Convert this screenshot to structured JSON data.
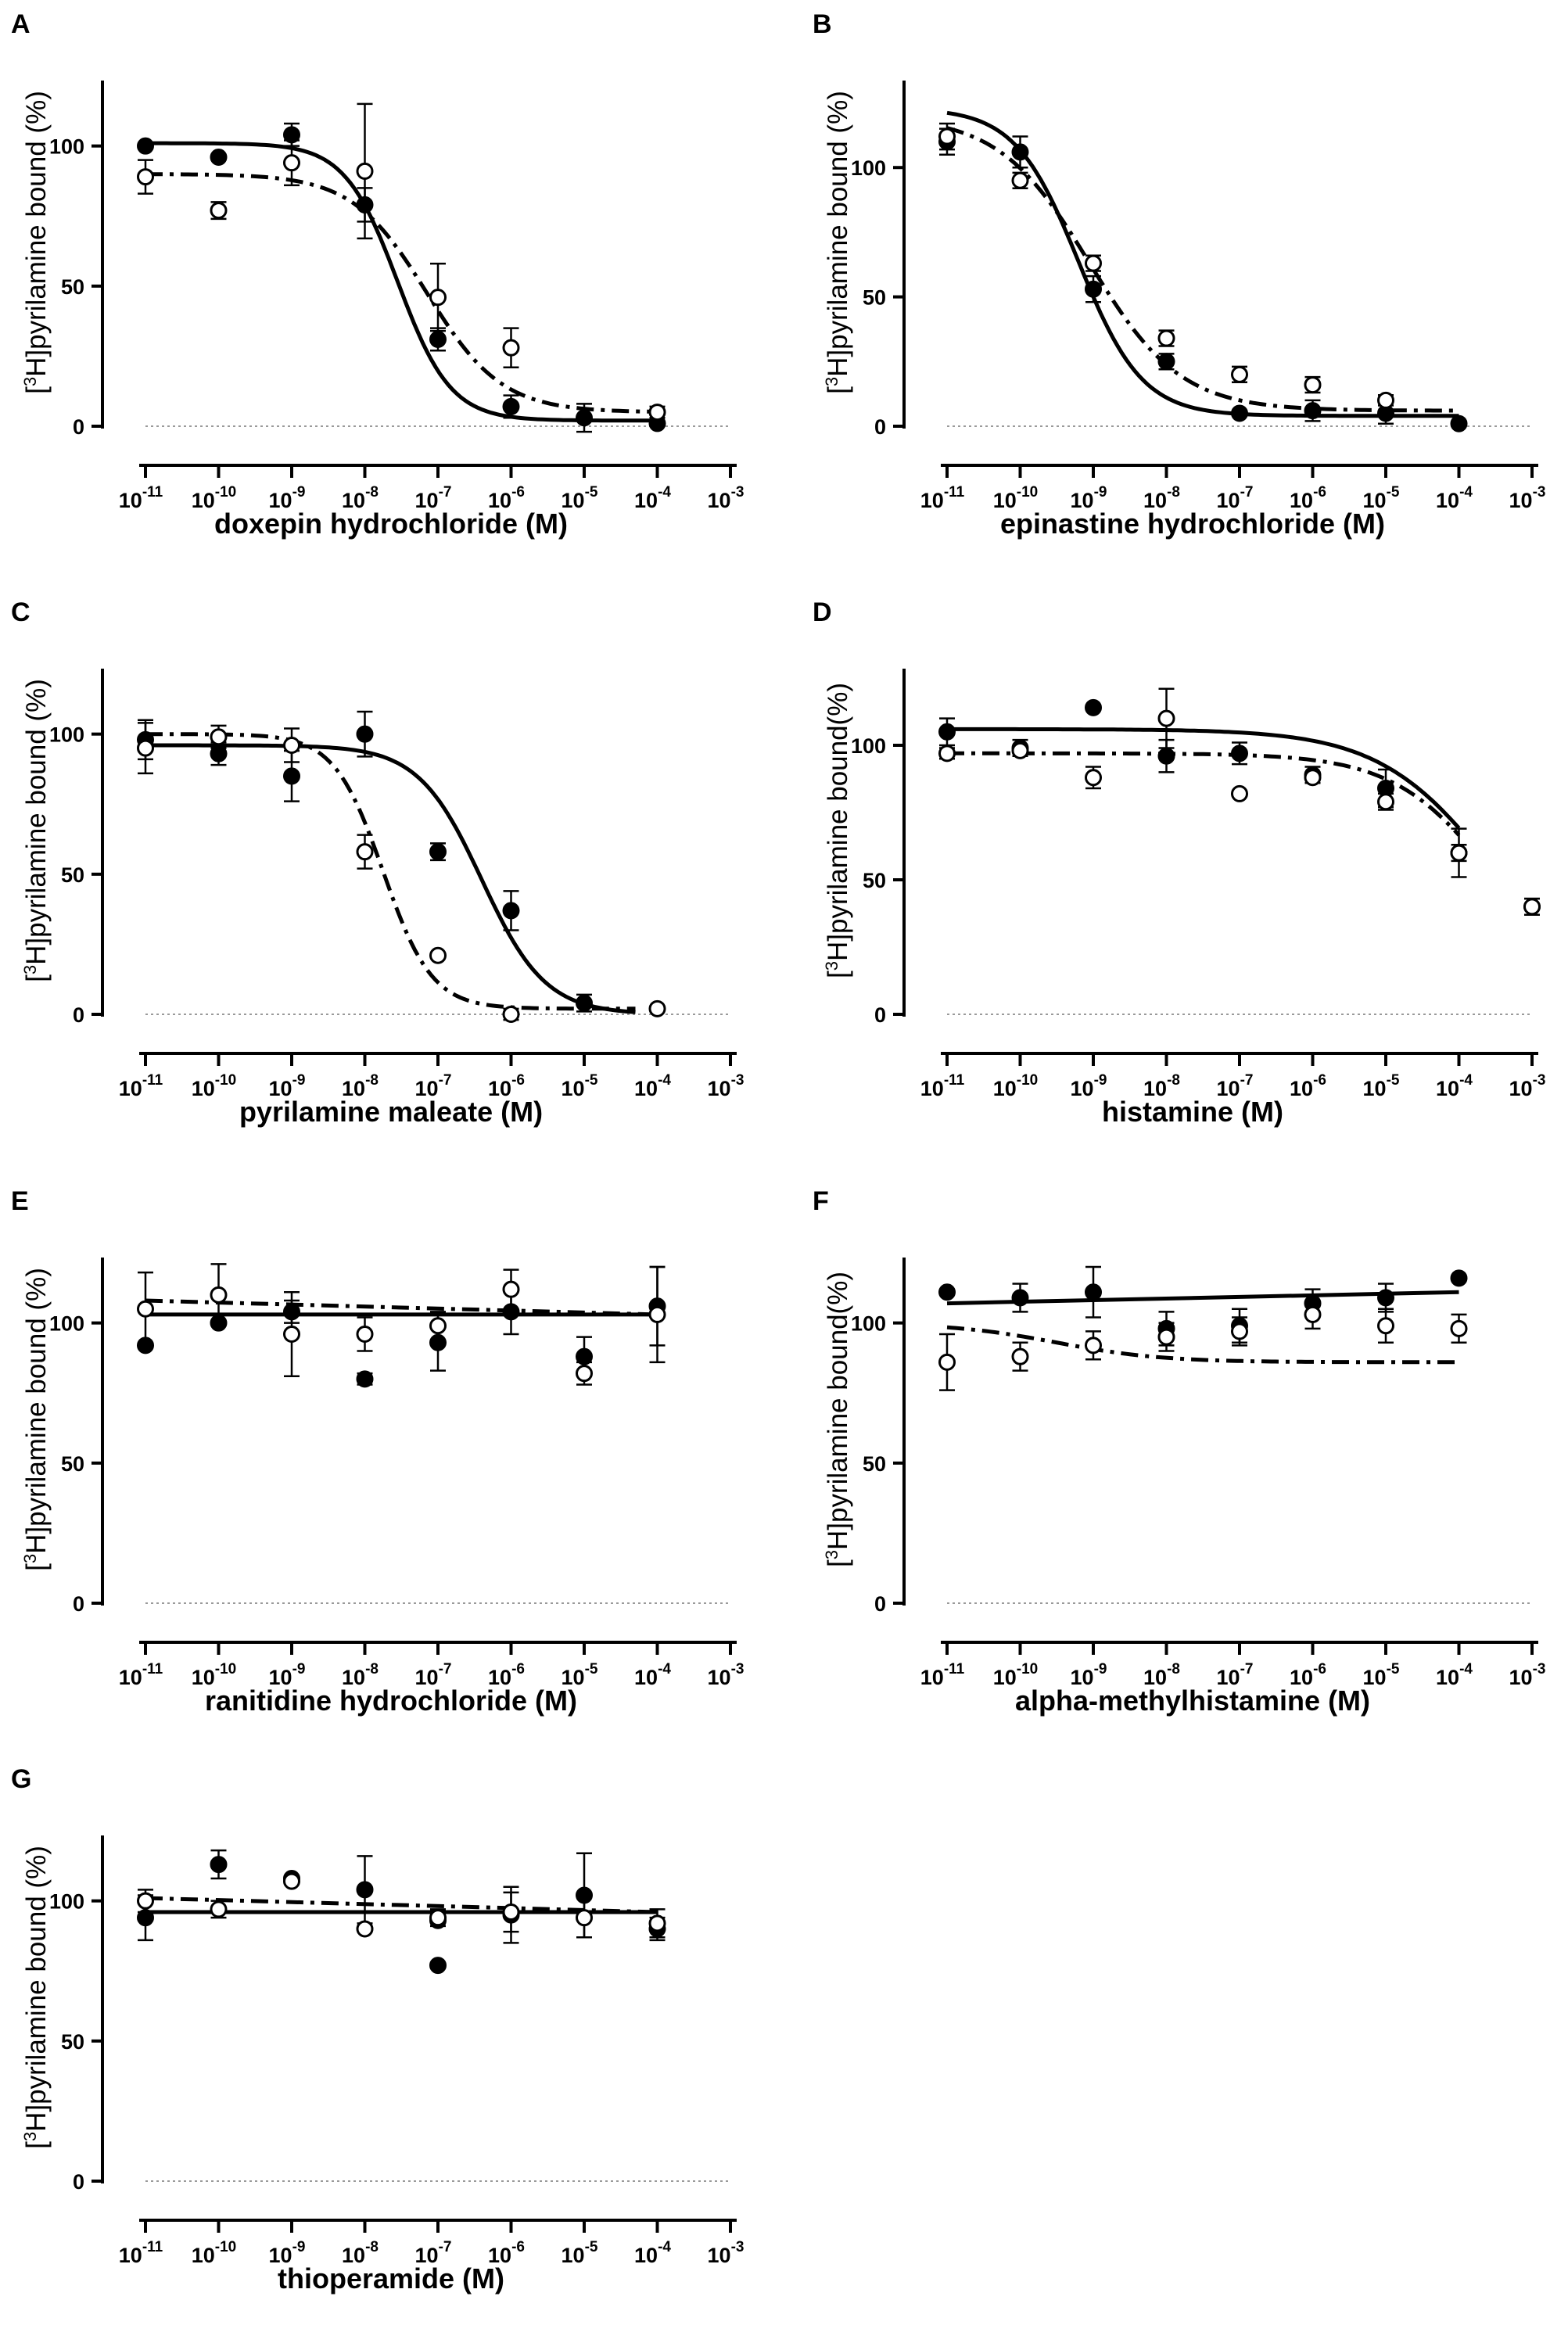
{
  "figure": {
    "description_units": "x in log10 molar concentration; y in percent bound",
    "marker_legend": {
      "filled": "series 1 (solid fit line)",
      "open": "series 2 (dash-dot fit line)"
    },
    "colors": {
      "ink": "#000000",
      "baseline": "#9a9a9a",
      "open_fill": "#ffffff"
    }
  },
  "chart_data": [
    {
      "panel": "A",
      "type": "scatter",
      "xlabel": "doxepin hydrochloride (M)",
      "ylabel_parts": [
        "[",
        "3",
        "H]pyrilamine bound (%)"
      ],
      "xlim": [
        -11,
        -3
      ],
      "ylim": [
        0,
        120
      ],
      "x_ticks": [
        -11,
        -10,
        -9,
        -8,
        -7,
        -6,
        -5,
        -4,
        -3
      ],
      "x_tick_labels": [
        "10",
        "10",
        "10",
        "10",
        "10",
        "10",
        "10",
        "10",
        "10"
      ],
      "x_tick_exps": [
        "-11",
        "-10",
        "-9",
        "-8",
        "-7",
        "-6",
        "-5",
        "-4",
        "-3"
      ],
      "y_ticks": [
        0,
        50,
        100
      ],
      "y_tick_labels": [
        "0",
        "50",
        "100"
      ],
      "series": [
        {
          "name": "filled",
          "marker": "filled",
          "x": [
            -11,
            -10,
            -9,
            -8,
            -7,
            -6,
            -5,
            -4
          ],
          "y": [
            100,
            96,
            104,
            79,
            31,
            7,
            3,
            1
          ],
          "err": [
            1,
            1,
            4,
            6,
            4,
            4,
            5,
            1
          ],
          "fit": {
            "model": "sigmoid",
            "line": "solid",
            "top": 101,
            "bottom": 2,
            "logEC50": -7.55,
            "hill": 1.2
          }
        },
        {
          "name": "open",
          "marker": "open",
          "x": [
            -11,
            -10,
            -9,
            -8,
            -7,
            -6,
            -4
          ],
          "y": [
            89,
            77,
            94,
            91,
            46,
            28,
            5
          ],
          "err": [
            6,
            3,
            8,
            24,
            12,
            7,
            2
          ],
          "fit": {
            "model": "sigmoid",
            "line": "dashdot",
            "top": 90,
            "bottom": 5,
            "logEC50": -7.15,
            "hill": 0.85
          }
        }
      ]
    },
    {
      "panel": "B",
      "type": "scatter",
      "xlabel": "epinastine hydrochloride (M)",
      "ylabel_parts": [
        "[",
        "3",
        "H]pyrilamine bound (%)"
      ],
      "xlim": [
        -11,
        -3
      ],
      "ylim": [
        0,
        130
      ],
      "x_ticks": [
        -11,
        -10,
        -9,
        -8,
        -7,
        -6,
        -5,
        -4,
        -3
      ],
      "x_tick_labels": [
        "10",
        "10",
        "10",
        "10",
        "10",
        "10",
        "10",
        "10",
        "10"
      ],
      "x_tick_exps": [
        "-11",
        "-10",
        "-9",
        "-8",
        "-7",
        "-6",
        "-5",
        "-4",
        "-3"
      ],
      "y_ticks": [
        0,
        50,
        100
      ],
      "y_tick_labels": [
        "0",
        "50",
        "100"
      ],
      "series": [
        {
          "name": "filled",
          "marker": "filled",
          "x": [
            -11,
            -10,
            -9,
            -8,
            -7,
            -6,
            -5,
            -4
          ],
          "y": [
            110,
            106,
            53,
            25,
            5,
            6,
            5,
            1
          ],
          "err": [
            5,
            6,
            5,
            3,
            1,
            4,
            4,
            1
          ],
          "fit": {
            "model": "sigmoid",
            "line": "solid",
            "top": 123,
            "bottom": 4,
            "logEC50": -9.2,
            "hill": 1.0
          }
        },
        {
          "name": "open",
          "marker": "open",
          "x": [
            -11,
            -10,
            -9,
            -8,
            -7,
            -6,
            -5
          ],
          "y": [
            112,
            95,
            63,
            34,
            20,
            16,
            10
          ],
          "err": [
            5,
            3,
            3,
            3,
            3,
            3,
            2
          ],
          "fit": {
            "model": "sigmoid",
            "line": "dashdot",
            "top": 120,
            "bottom": 6,
            "logEC50": -9.05,
            "hill": 0.7
          }
        }
      ]
    },
    {
      "panel": "C",
      "type": "scatter",
      "xlabel": "pyrilamine maleate (M)",
      "ylabel_parts": [
        "[",
        "3",
        "H]pyrilamine bound (%)"
      ],
      "xlim": [
        -11,
        -3
      ],
      "ylim": [
        0,
        120
      ],
      "x_ticks": [
        -11,
        -10,
        -9,
        -8,
        -7,
        -6,
        -5,
        -4,
        -3
      ],
      "x_tick_labels": [
        "10",
        "10",
        "10",
        "10",
        "10",
        "10",
        "10",
        "10",
        "10"
      ],
      "x_tick_exps": [
        "-11",
        "-10",
        "-9",
        "-8",
        "-7",
        "-6",
        "-5",
        "-4",
        "-3"
      ],
      "y_ticks": [
        0,
        50,
        100
      ],
      "y_tick_labels": [
        "0",
        "50",
        "100"
      ],
      "series": [
        {
          "name": "filled",
          "marker": "filled",
          "x": [
            -11,
            -10,
            -9,
            -8,
            -7,
            -6,
            -5
          ],
          "y": [
            98,
            93,
            85,
            100,
            58,
            37,
            4
          ],
          "err": [
            7,
            4,
            9,
            8,
            3,
            7,
            3
          ],
          "fit": {
            "model": "sigmoid",
            "line": "solid",
            "top": 96,
            "bottom": 0,
            "logEC50": -6.4,
            "hill": 1.0,
            "x_end": -4.3
          }
        },
        {
          "name": "open",
          "marker": "open",
          "x": [
            -11,
            -10,
            -9,
            -8,
            -7,
            -6,
            -4
          ],
          "y": [
            95,
            99,
            96,
            58,
            21,
            0,
            2
          ],
          "err": [
            9,
            4,
            6,
            6,
            1,
            2,
            1
          ],
          "fit": {
            "model": "sigmoid",
            "line": "dashdot",
            "top": 100,
            "bottom": 2,
            "logEC50": -7.75,
            "hill": 1.3,
            "x_end": -4.3
          }
        }
      ]
    },
    {
      "panel": "D",
      "type": "scatter",
      "xlabel": "histamine (M)",
      "ylabel_parts": [
        "[",
        "3",
        "H]pyrilamine bound(%)"
      ],
      "xlim": [
        -11,
        -3
      ],
      "ylim": [
        0,
        125
      ],
      "x_ticks": [
        -11,
        -10,
        -9,
        -8,
        -7,
        -6,
        -5,
        -4,
        -3
      ],
      "x_tick_labels": [
        "10",
        "10",
        "10",
        "10",
        "10",
        "10",
        "10",
        "10",
        "10"
      ],
      "x_tick_exps": [
        "-11",
        "-10",
        "-9",
        "-8",
        "-7",
        "-6",
        "-5",
        "-4",
        "-3"
      ],
      "y_ticks": [
        0,
        50,
        100
      ],
      "y_tick_labels": [
        "0",
        "50",
        "100"
      ],
      "series": [
        {
          "name": "filled",
          "marker": "filled",
          "x": [
            -11,
            -10,
            -9,
            -8,
            -7,
            -6,
            -5,
            -4,
            -3
          ],
          "y": [
            105,
            99,
            114,
            96,
            97,
            89,
            84,
            60,
            40
          ],
          "err": [
            5,
            3,
            1,
            6,
            4,
            3,
            7,
            9,
            3
          ],
          "fit": {
            "model": "sigmoid",
            "line": "solid",
            "top": 106,
            "bottom": 0,
            "logEC50": -3.5,
            "hill": 0.55
          }
        },
        {
          "name": "open",
          "marker": "open",
          "x": [
            -11,
            -10,
            -9,
            -8,
            -7,
            -6,
            -5,
            -4,
            -3
          ],
          "y": [
            97,
            98,
            88,
            110,
            82,
            88,
            79,
            60,
            40
          ],
          "err": [
            2,
            2,
            4,
            11,
            1,
            2,
            3,
            3,
            3
          ],
          "fit": {
            "model": "sigmoid",
            "line": "dashdot",
            "top": 97,
            "bottom": 0,
            "logEC50": -3.45,
            "hill": 0.62
          }
        }
      ]
    },
    {
      "panel": "E",
      "type": "scatter",
      "xlabel": "ranitidine hydrochloride (M)",
      "ylabel_parts": [
        "[",
        "3",
        "H]pyrilamine bound (%)"
      ],
      "xlim": [
        -11,
        -3
      ],
      "ylim": [
        0,
        120
      ],
      "x_ticks": [
        -11,
        -10,
        -9,
        -8,
        -7,
        -6,
        -5,
        -4,
        -3
      ],
      "x_tick_labels": [
        "10",
        "10",
        "10",
        "10",
        "10",
        "10",
        "10",
        "10",
        "10"
      ],
      "x_tick_exps": [
        "-11",
        "-10",
        "-9",
        "-8",
        "-7",
        "-6",
        "-5",
        "-4",
        "-3"
      ],
      "y_ticks": [
        0,
        50,
        100
      ],
      "y_tick_labels": [
        "0",
        "50",
        "100"
      ],
      "series": [
        {
          "name": "filled",
          "marker": "filled",
          "x": [
            -11,
            -10,
            -9,
            -8,
            -7,
            -6,
            -5,
            -4
          ],
          "y": [
            92,
            100,
            104,
            80,
            93,
            104,
            88,
            106
          ],
          "err": [
            1,
            1,
            4,
            2,
            10,
            8,
            7,
            14
          ],
          "fit": {
            "model": "linear",
            "line": "solid",
            "y_start": 103,
            "y_end": 103,
            "x_start": -11,
            "x_end": -4
          }
        },
        {
          "name": "open",
          "marker": "open",
          "x": [
            -11,
            -10,
            -9,
            -8,
            -7,
            -6,
            -5,
            -4
          ],
          "y": [
            105,
            110,
            96,
            96,
            99,
            112,
            82,
            103
          ],
          "err": [
            13,
            11,
            15,
            6,
            5,
            7,
            4,
            17
          ],
          "fit": {
            "model": "linear",
            "line": "dashdot",
            "y_start": 108,
            "y_end": 103,
            "x_start": -11,
            "x_end": -4
          }
        }
      ]
    },
    {
      "panel": "F",
      "type": "scatter",
      "xlabel": "alpha-methylhistamine (M)",
      "ylabel_parts": [
        "[",
        "3",
        "H]pyrilamine bound(%)"
      ],
      "xlim": [
        -11,
        -3
      ],
      "ylim": [
        0,
        120
      ],
      "x_ticks": [
        -11,
        -10,
        -9,
        -8,
        -7,
        -6,
        -5,
        -4,
        -3
      ],
      "x_tick_labels": [
        "10",
        "10",
        "10",
        "10",
        "10",
        "10",
        "10",
        "10",
        "10"
      ],
      "x_tick_exps": [
        "-11",
        "-10",
        "-9",
        "-8",
        "-7",
        "-6",
        "-5",
        "-4",
        "-3"
      ],
      "y_ticks": [
        0,
        50,
        100
      ],
      "y_tick_labels": [
        "0",
        "50",
        "100"
      ],
      "series": [
        {
          "name": "filled",
          "marker": "filled",
          "x": [
            -11,
            -10,
            -9,
            -8,
            -7,
            -6,
            -5,
            -4
          ],
          "y": [
            111,
            109,
            111,
            98,
            99,
            107,
            109,
            116
          ],
          "err": [
            1,
            5,
            9,
            6,
            6,
            5,
            5,
            1
          ],
          "fit": {
            "model": "linear",
            "line": "solid",
            "y_start": 107,
            "y_end": 111,
            "x_start": -11,
            "x_end": -4
          }
        },
        {
          "name": "open",
          "marker": "open",
          "x": [
            -11,
            -10,
            -9,
            -8,
            -7,
            -6,
            -5,
            -4
          ],
          "y": [
            86,
            88,
            92,
            95,
            97,
            103,
            99,
            98
          ],
          "err": [
            10,
            5,
            5,
            5,
            5,
            5,
            6,
            5
          ],
          "fit": {
            "model": "sigmoid",
            "line": "dashdot",
            "top": 100,
            "bottom": 86,
            "logEC50": -9.5,
            "hill": 0.6,
            "x_end": -4
          }
        }
      ]
    },
    {
      "panel": "G",
      "type": "scatter",
      "xlabel": "thioperamide (M)",
      "ylabel_parts": [
        "[",
        "3",
        "H]pyrilamine bound (%)"
      ],
      "xlim": [
        -11,
        -3
      ],
      "ylim": [
        0,
        120
      ],
      "x_ticks": [
        -11,
        -10,
        -9,
        -8,
        -7,
        -6,
        -5,
        -4,
        -3
      ],
      "x_tick_labels": [
        "10",
        "10",
        "10",
        "10",
        "10",
        "10",
        "10",
        "10",
        "10"
      ],
      "x_tick_exps": [
        "-11",
        "-10",
        "-9",
        "-8",
        "-7",
        "-6",
        "-5",
        "-4",
        "-3"
      ],
      "y_ticks": [
        0,
        50,
        100
      ],
      "y_tick_labels": [
        "0",
        "50",
        "100"
      ],
      "series": [
        {
          "name": "filled",
          "marker": "filled",
          "x": [
            -11,
            -10,
            -9,
            -8,
            -7,
            -7,
            -6,
            -5,
            -4
          ],
          "y": [
            94,
            113,
            108,
            104,
            93,
            77,
            95,
            102,
            90
          ],
          "err": [
            8,
            5,
            1,
            12,
            1,
            0,
            10,
            15,
            4
          ],
          "fit": {
            "model": "linear",
            "line": "solid",
            "y_start": 96,
            "y_end": 96,
            "x_start": -11,
            "x_end": -4
          }
        },
        {
          "name": "open",
          "marker": "open",
          "x": [
            -11,
            -10,
            -9,
            -8,
            -7,
            -6,
            -5,
            -4
          ],
          "y": [
            100,
            97,
            107,
            90,
            94,
            96,
            94,
            92
          ],
          "err": [
            4,
            3,
            1,
            1,
            3,
            7,
            7,
            5
          ],
          "fit": {
            "model": "linear",
            "line": "dashdot",
            "y_start": 101,
            "y_end": 96,
            "x_start": -11,
            "x_end": -4
          }
        }
      ]
    }
  ]
}
